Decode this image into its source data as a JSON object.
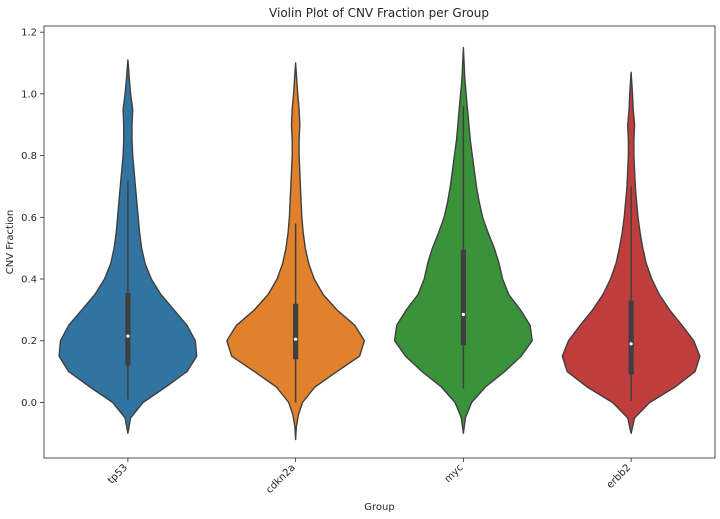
{
  "chart_data": {
    "type": "violin",
    "title": "Violin Plot of CNV Fraction per Group",
    "xlabel": "Group",
    "ylabel": "CNV Fraction",
    "ylim": [
      -0.18,
      1.22
    ],
    "yticks": [
      "0.0",
      "0.2",
      "0.4",
      "0.6",
      "0.8",
      "1.0",
      "1.2"
    ],
    "grid": false,
    "legend": "none",
    "categories": [
      "tp53",
      "cdkn2a",
      "myc",
      "erbb2"
    ],
    "colors": [
      "#3274a1",
      "#e1812c",
      "#3a923a",
      "#c03d3e"
    ],
    "series": [
      {
        "category": "tp53",
        "min": -0.1,
        "max": 1.11,
        "q1": 0.12,
        "median": 0.215,
        "q3": 0.355,
        "whisker_low": 0.01,
        "whisker_high": 0.72,
        "density": [
          [
            -0.1,
            0.0
          ],
          [
            -0.05,
            0.04
          ],
          [
            0.0,
            0.22
          ],
          [
            0.05,
            0.55
          ],
          [
            0.1,
            0.86
          ],
          [
            0.15,
            1.0
          ],
          [
            0.2,
            0.98
          ],
          [
            0.25,
            0.86
          ],
          [
            0.3,
            0.67
          ],
          [
            0.35,
            0.48
          ],
          [
            0.4,
            0.34
          ],
          [
            0.45,
            0.25
          ],
          [
            0.5,
            0.2
          ],
          [
            0.55,
            0.17
          ],
          [
            0.6,
            0.15
          ],
          [
            0.65,
            0.13
          ],
          [
            0.7,
            0.11
          ],
          [
            0.75,
            0.09
          ],
          [
            0.8,
            0.07
          ],
          [
            0.85,
            0.06
          ],
          [
            0.9,
            0.06
          ],
          [
            0.95,
            0.07
          ],
          [
            1.0,
            0.04
          ],
          [
            1.05,
            0.02
          ],
          [
            1.11,
            0.0
          ]
        ]
      },
      {
        "category": "cdkn2a",
        "min": -0.12,
        "max": 1.1,
        "q1": 0.14,
        "median": 0.205,
        "q3": 0.32,
        "whisker_low": 0.0,
        "whisker_high": 0.58,
        "density": [
          [
            -0.12,
            0.0
          ],
          [
            -0.08,
            0.01
          ],
          [
            -0.04,
            0.04
          ],
          [
            0.0,
            0.1
          ],
          [
            0.05,
            0.28
          ],
          [
            0.1,
            0.6
          ],
          [
            0.15,
            0.93
          ],
          [
            0.2,
            1.0
          ],
          [
            0.25,
            0.86
          ],
          [
            0.3,
            0.6
          ],
          [
            0.35,
            0.4
          ],
          [
            0.4,
            0.27
          ],
          [
            0.45,
            0.19
          ],
          [
            0.5,
            0.14
          ],
          [
            0.55,
            0.11
          ],
          [
            0.6,
            0.09
          ],
          [
            0.65,
            0.08
          ],
          [
            0.7,
            0.07
          ],
          [
            0.75,
            0.06
          ],
          [
            0.8,
            0.05
          ],
          [
            0.85,
            0.05
          ],
          [
            0.9,
            0.06
          ],
          [
            0.95,
            0.05
          ],
          [
            1.0,
            0.03
          ],
          [
            1.1,
            0.0
          ]
        ]
      },
      {
        "category": "myc",
        "min": -0.1,
        "max": 1.15,
        "q1": 0.185,
        "median": 0.285,
        "q3": 0.495,
        "whisker_low": 0.045,
        "whisker_high": 0.96,
        "density": [
          [
            -0.1,
            0.0
          ],
          [
            -0.05,
            0.03
          ],
          [
            0.0,
            0.12
          ],
          [
            0.05,
            0.32
          ],
          [
            0.1,
            0.6
          ],
          [
            0.15,
            0.84
          ],
          [
            0.2,
            1.0
          ],
          [
            0.25,
            0.97
          ],
          [
            0.3,
            0.83
          ],
          [
            0.35,
            0.66
          ],
          [
            0.4,
            0.57
          ],
          [
            0.45,
            0.52
          ],
          [
            0.5,
            0.45
          ],
          [
            0.55,
            0.36
          ],
          [
            0.6,
            0.28
          ],
          [
            0.65,
            0.23
          ],
          [
            0.7,
            0.19
          ],
          [
            0.75,
            0.16
          ],
          [
            0.8,
            0.13
          ],
          [
            0.85,
            0.1
          ],
          [
            0.9,
            0.08
          ],
          [
            0.95,
            0.06
          ],
          [
            1.0,
            0.04
          ],
          [
            1.05,
            0.02
          ],
          [
            1.15,
            0.0
          ]
        ]
      },
      {
        "category": "erbb2",
        "min": -0.1,
        "max": 1.07,
        "q1": 0.09,
        "median": 0.19,
        "q3": 0.33,
        "whisker_low": 0.005,
        "whisker_high": 0.7,
        "density": [
          [
            -0.1,
            0.0
          ],
          [
            -0.05,
            0.05
          ],
          [
            0.0,
            0.27
          ],
          [
            0.05,
            0.64
          ],
          [
            0.1,
            0.93
          ],
          [
            0.15,
            1.0
          ],
          [
            0.2,
            0.91
          ],
          [
            0.25,
            0.74
          ],
          [
            0.3,
            0.56
          ],
          [
            0.35,
            0.41
          ],
          [
            0.4,
            0.3
          ],
          [
            0.45,
            0.22
          ],
          [
            0.5,
            0.17
          ],
          [
            0.55,
            0.13
          ],
          [
            0.6,
            0.1
          ],
          [
            0.65,
            0.08
          ],
          [
            0.7,
            0.06
          ],
          [
            0.75,
            0.05
          ],
          [
            0.8,
            0.04
          ],
          [
            0.85,
            0.04
          ],
          [
            0.9,
            0.05
          ],
          [
            0.95,
            0.03
          ],
          [
            1.0,
            0.02
          ],
          [
            1.07,
            0.0
          ]
        ]
      }
    ]
  }
}
